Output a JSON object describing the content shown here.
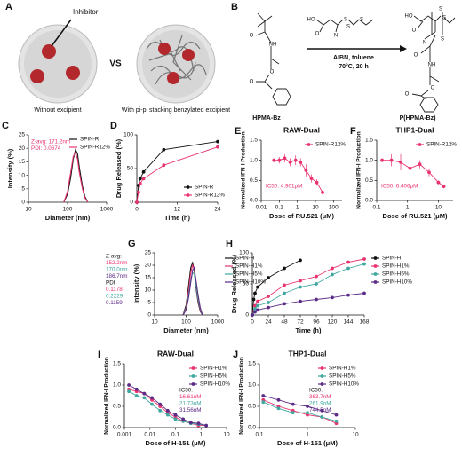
{
  "panels": {
    "A": {
      "letter": "A",
      "inhibitor": "Inhibitor",
      "vs": "VS",
      "left_caption": "Without excipient",
      "right_caption": "With pi-pi stacking benzylated excipient"
    },
    "B": {
      "letter": "B",
      "monomer": "HPMA-Bz",
      "conditions_1": "AIBN, toluene",
      "conditions_2": "70°C, 20 h",
      "product": "P(HPMA-Bz)",
      "atoms": [
        "O",
        "NH",
        "O",
        "O",
        "HO",
        "O",
        "N",
        "S",
        "S",
        "S",
        "HO",
        "O",
        "N",
        "S",
        "S",
        "S",
        "O",
        "NH",
        "O",
        "O"
      ]
    }
  },
  "chart_data": [
    {
      "panel": "C",
      "type": "line",
      "x_label": "Diameter (nm)",
      "y_label": "Intensity (%)",
      "xscale": "log",
      "xlim": [
        10,
        1000
      ],
      "xticks": [
        10,
        100,
        1000
      ],
      "ylim": [
        0,
        25
      ],
      "yticks": [
        0,
        5,
        10,
        15,
        20,
        25
      ],
      "markers": false,
      "legend": "upper right",
      "x": [
        80,
        100,
        120,
        140,
        160,
        180,
        200,
        240,
        280,
        330
      ],
      "series": [
        {
          "name": "SPIN-R",
          "color": "#111111",
          "values": [
            0,
            3,
            9,
            16,
            19.5,
            18,
            13,
            6,
            2,
            0
          ]
        },
        {
          "name": "SPIN-R12%",
          "color": "#e8336e",
          "values": [
            0,
            4,
            11,
            17,
            18.5,
            16,
            11,
            5,
            1.5,
            0
          ]
        }
      ],
      "annotations": [
        {
          "text": "Z-avg: 171.2nm",
          "color": "#e8336e"
        },
        {
          "text": "PDI: 0.0674",
          "color": "#e8336e"
        }
      ]
    },
    {
      "panel": "D",
      "type": "line",
      "x_label": "Time (h)",
      "y_label": "Drug Released (%)",
      "xlim": [
        0,
        24
      ],
      "xticks": [
        0,
        12,
        24
      ],
      "ylim": [
        0,
        100
      ],
      "yticks": [
        0,
        50,
        100
      ],
      "markers": true,
      "legend": "lower right",
      "x": [
        0,
        0.5,
        1,
        2,
        8,
        24
      ],
      "series": [
        {
          "name": "SPIN-R",
          "color": "#111111",
          "values": [
            0,
            25,
            35,
            45,
            78,
            90
          ]
        },
        {
          "name": "SPIN-R12%",
          "color": "#e8336e",
          "values": [
            0,
            15,
            28,
            35,
            55,
            82
          ]
        }
      ]
    },
    {
      "panel": "E",
      "type": "line",
      "title": "RAW-Dual",
      "x_label": "Dose of RU.521 (μM)",
      "y_label": "Normalized IFN-I Production",
      "xscale": "log",
      "xlim": [
        0.01,
        300
      ],
      "xticks": [
        0.01,
        0.1,
        1,
        10,
        100
      ],
      "ylim": [
        0,
        1.5
      ],
      "yticks": [
        {
          "value": 0,
          "label": "0.0"
        },
        0.5,
        {
          "value": 1,
          "label": "1.0"
        },
        1.5
      ],
      "markers": true,
      "legend": "upper right",
      "x": [
        0.05,
        0.1,
        0.2,
        0.4,
        0.8,
        1.5,
        3,
        6,
        12,
        25
      ],
      "series": [
        {
          "name": "SPIN-R12%",
          "color": "#e8336e",
          "values": [
            1.0,
            1.0,
            1.05,
            0.95,
            1.0,
            0.95,
            0.75,
            0.55,
            0.45,
            0.2
          ],
          "errors": [
            0.05,
            0.08,
            0.1,
            0.1,
            0.12,
            0.1,
            0.15,
            0.1,
            0.08,
            0.05
          ]
        }
      ],
      "annotations": [
        {
          "text": "IC50: 4.901μM",
          "color": "#e8336e"
        }
      ]
    },
    {
      "panel": "F",
      "type": "line",
      "title": "THP1-Dual",
      "x_label": "Dose of RU.521 (μM)",
      "y_label": "Normalized IFN-I Production",
      "xscale": "log",
      "xlim": [
        0.1,
        30
      ],
      "xticks": [
        0.1,
        1,
        10
      ],
      "ylim": [
        0,
        1.5
      ],
      "yticks": [
        {
          "value": 0,
          "label": "0.0"
        },
        0.5,
        {
          "value": 1,
          "label": "1.0"
        },
        1.5
      ],
      "markers": true,
      "legend": "upper right",
      "x": [
        0.15,
        0.3,
        0.6,
        1.2,
        2.5,
        5,
        10,
        15
      ],
      "series": [
        {
          "name": "SPIN-R12%",
          "color": "#e8336e",
          "values": [
            1.0,
            1.0,
            0.95,
            0.8,
            0.9,
            0.7,
            0.45,
            0.35
          ],
          "errors": [
            0.05,
            0.15,
            0.2,
            0.15,
            0.1,
            0.1,
            0.05,
            0.05
          ]
        }
      ],
      "annotations": [
        {
          "text": "IC50: 6.406μM",
          "color": "#e8336e"
        }
      ]
    },
    {
      "panel": "G",
      "type": "line",
      "x_label": "Diameter (nm)",
      "y_label": "Intensity (%)",
      "xscale": "log",
      "xlim": [
        10,
        1000
      ],
      "xticks": [
        10,
        100,
        1000
      ],
      "ylim": [
        0,
        25
      ],
      "yticks": [
        0,
        5,
        10,
        15,
        20,
        25
      ],
      "markers": false,
      "legend": "outside right",
      "x": [
        80,
        100,
        120,
        140,
        160,
        180,
        200,
        240,
        280,
        330
      ],
      "series": [
        {
          "name": "SPIN-H",
          "color": "#111111",
          "values": [
            0,
            4,
            12,
            19,
            21,
            18,
            12,
            5,
            1.5,
            0
          ]
        },
        {
          "name": "SPIN-H1%",
          "color": "#e8336e",
          "values": [
            0,
            3,
            10,
            17,
            20,
            18.5,
            13,
            6,
            2,
            0
          ]
        },
        {
          "name": "SPIN-H5%",
          "color": "#3fa7a0",
          "values": [
            0,
            2.5,
            8,
            14,
            17,
            16.5,
            13,
            6.5,
            2.5,
            0
          ]
        },
        {
          "name": "SPIN-H10%",
          "color": "#5b2a86",
          "values": [
            0,
            2,
            7,
            13,
            18,
            19,
            15,
            8,
            3,
            0
          ]
        }
      ],
      "annotations": [
        {
          "text": "Z-avg:",
          "color": "#111111"
        },
        {
          "text": "152.2nm",
          "color": "#e8336e"
        },
        {
          "text": "170.0nm",
          "color": "#3fa7a0"
        },
        {
          "text": "186.7nm",
          "color": "#5b2a86"
        },
        {
          "text": "PDI",
          "color": "#111111"
        },
        {
          "text": "0.1178",
          "color": "#e8336e"
        },
        {
          "text": "0.2229",
          "color": "#3fa7a0"
        },
        {
          "text": "0.1159",
          "color": "#5b2a86"
        }
      ]
    },
    {
      "panel": "H",
      "type": "line",
      "x_label": "Time (h)",
      "y_label": "Drug Released (%)",
      "xlim": [
        0,
        168
      ],
      "xticks": [
        0,
        24,
        48,
        72,
        96,
        120,
        144,
        168
      ],
      "ylim": [
        0,
        100
      ],
      "yticks": [
        0,
        50,
        100
      ],
      "markers": true,
      "legend": "outside right",
      "series": [
        {
          "name": "SPIN-H",
          "color": "#111111",
          "x": [
            0,
            2,
            4,
            8,
            24,
            48,
            72
          ],
          "values": [
            0,
            25,
            35,
            45,
            60,
            75,
            88
          ]
        },
        {
          "name": "SPIN-H1%",
          "color": "#e8336e",
          "x": [
            0,
            4,
            8,
            24,
            48,
            72,
            96,
            120,
            144,
            168
          ],
          "values": [
            0,
            15,
            22,
            30,
            48,
            55,
            62,
            75,
            85,
            90
          ]
        },
        {
          "name": "SPIN-H5%",
          "color": "#3fa7a0",
          "x": [
            0,
            4,
            8,
            24,
            48,
            72,
            96,
            120,
            144,
            168
          ],
          "values": [
            0,
            10,
            15,
            20,
            35,
            45,
            50,
            65,
            75,
            82
          ]
        },
        {
          "name": "SPIN-H10%",
          "color": "#5b2a86",
          "x": [
            0,
            4,
            8,
            24,
            48,
            72,
            96,
            120,
            144,
            168
          ],
          "values": [
            0,
            5,
            8,
            12,
            18,
            22,
            25,
            28,
            32,
            35
          ]
        }
      ]
    },
    {
      "panel": "I",
      "type": "line",
      "title": "RAW-Dual",
      "x_label": "Dose of H-151 (μM)",
      "y_label": "Normalized IFN-I Production",
      "xscale": "log",
      "xlim": [
        0.001,
        10
      ],
      "xticks": [
        0.001,
        0.01,
        0.1,
        1,
        10
      ],
      "ylim": [
        0,
        1.5
      ],
      "yticks": [
        {
          "value": 0,
          "label": "0.0"
        },
        0.5,
        {
          "value": 1,
          "label": "1.0"
        },
        1.5
      ],
      "markers": true,
      "legend": "upper right",
      "x": [
        0.0015,
        0.003,
        0.006,
        0.012,
        0.025,
        0.05,
        0.1,
        0.2,
        0.4,
        0.8,
        1.6
      ],
      "series": [
        {
          "name": "SPIN-H1%",
          "color": "#e8336e",
          "values": [
            0.9,
            0.85,
            0.8,
            0.65,
            0.5,
            0.35,
            0.25,
            0.15,
            0.1,
            0.05,
            0.05
          ]
        },
        {
          "name": "SPIN-H5%",
          "color": "#3fa7a0",
          "values": [
            0.85,
            0.75,
            0.7,
            0.55,
            0.4,
            0.3,
            0.2,
            0.15,
            0.1,
            0.08,
            0.05
          ]
        },
        {
          "name": "SPIN-H10%",
          "color": "#5b2a86",
          "values": [
            1.0,
            0.9,
            0.8,
            0.7,
            0.55,
            0.4,
            0.3,
            0.2,
            0.12,
            0.1,
            0.05
          ]
        }
      ],
      "annotations": [
        {
          "text": "IC50:",
          "color": "#111111"
        },
        {
          "text": "16.61nM",
          "color": "#e8336e"
        },
        {
          "text": "21.73nM",
          "color": "#3fa7a0"
        },
        {
          "text": "31.56nM",
          "color": "#5b2a86"
        }
      ]
    },
    {
      "panel": "J",
      "type": "line",
      "title": "THP1-Dual",
      "x_label": "Dose of H-151 (μM)",
      "y_label": "Normalized IFN-I Production",
      "xscale": "log",
      "xlim": [
        0.1,
        10
      ],
      "xticks": [
        0.1,
        1,
        10
      ],
      "ylim": [
        0,
        1.5
      ],
      "yticks": [
        {
          "value": 0,
          "label": "0.0"
        },
        0.5,
        {
          "value": 1,
          "label": "1.0"
        },
        1.5
      ],
      "markers": true,
      "legend": "upper right",
      "x": [
        0.12,
        0.25,
        0.5,
        1,
        2,
        4
      ],
      "series": [
        {
          "name": "SPIN-H1%",
          "color": "#e8336e",
          "values": [
            0.65,
            0.5,
            0.4,
            0.3,
            0.25,
            0.1
          ]
        },
        {
          "name": "SPIN-H5%",
          "color": "#3fa7a0",
          "values": [
            0.6,
            0.45,
            0.35,
            0.35,
            0.25,
            0.15
          ]
        },
        {
          "name": "SPIN-H10%",
          "color": "#5b2a86",
          "values": [
            0.75,
            0.65,
            0.55,
            0.5,
            0.4,
            0.3
          ]
        }
      ],
      "annotations": [
        {
          "text": "IC50:",
          "color": "#111111"
        },
        {
          "text": "363.7nM",
          "color": "#e8336e"
        },
        {
          "text": "261.9nM",
          "color": "#3fa7a0"
        },
        {
          "text": "744.5nM",
          "color": "#5b2a86"
        }
      ]
    }
  ]
}
